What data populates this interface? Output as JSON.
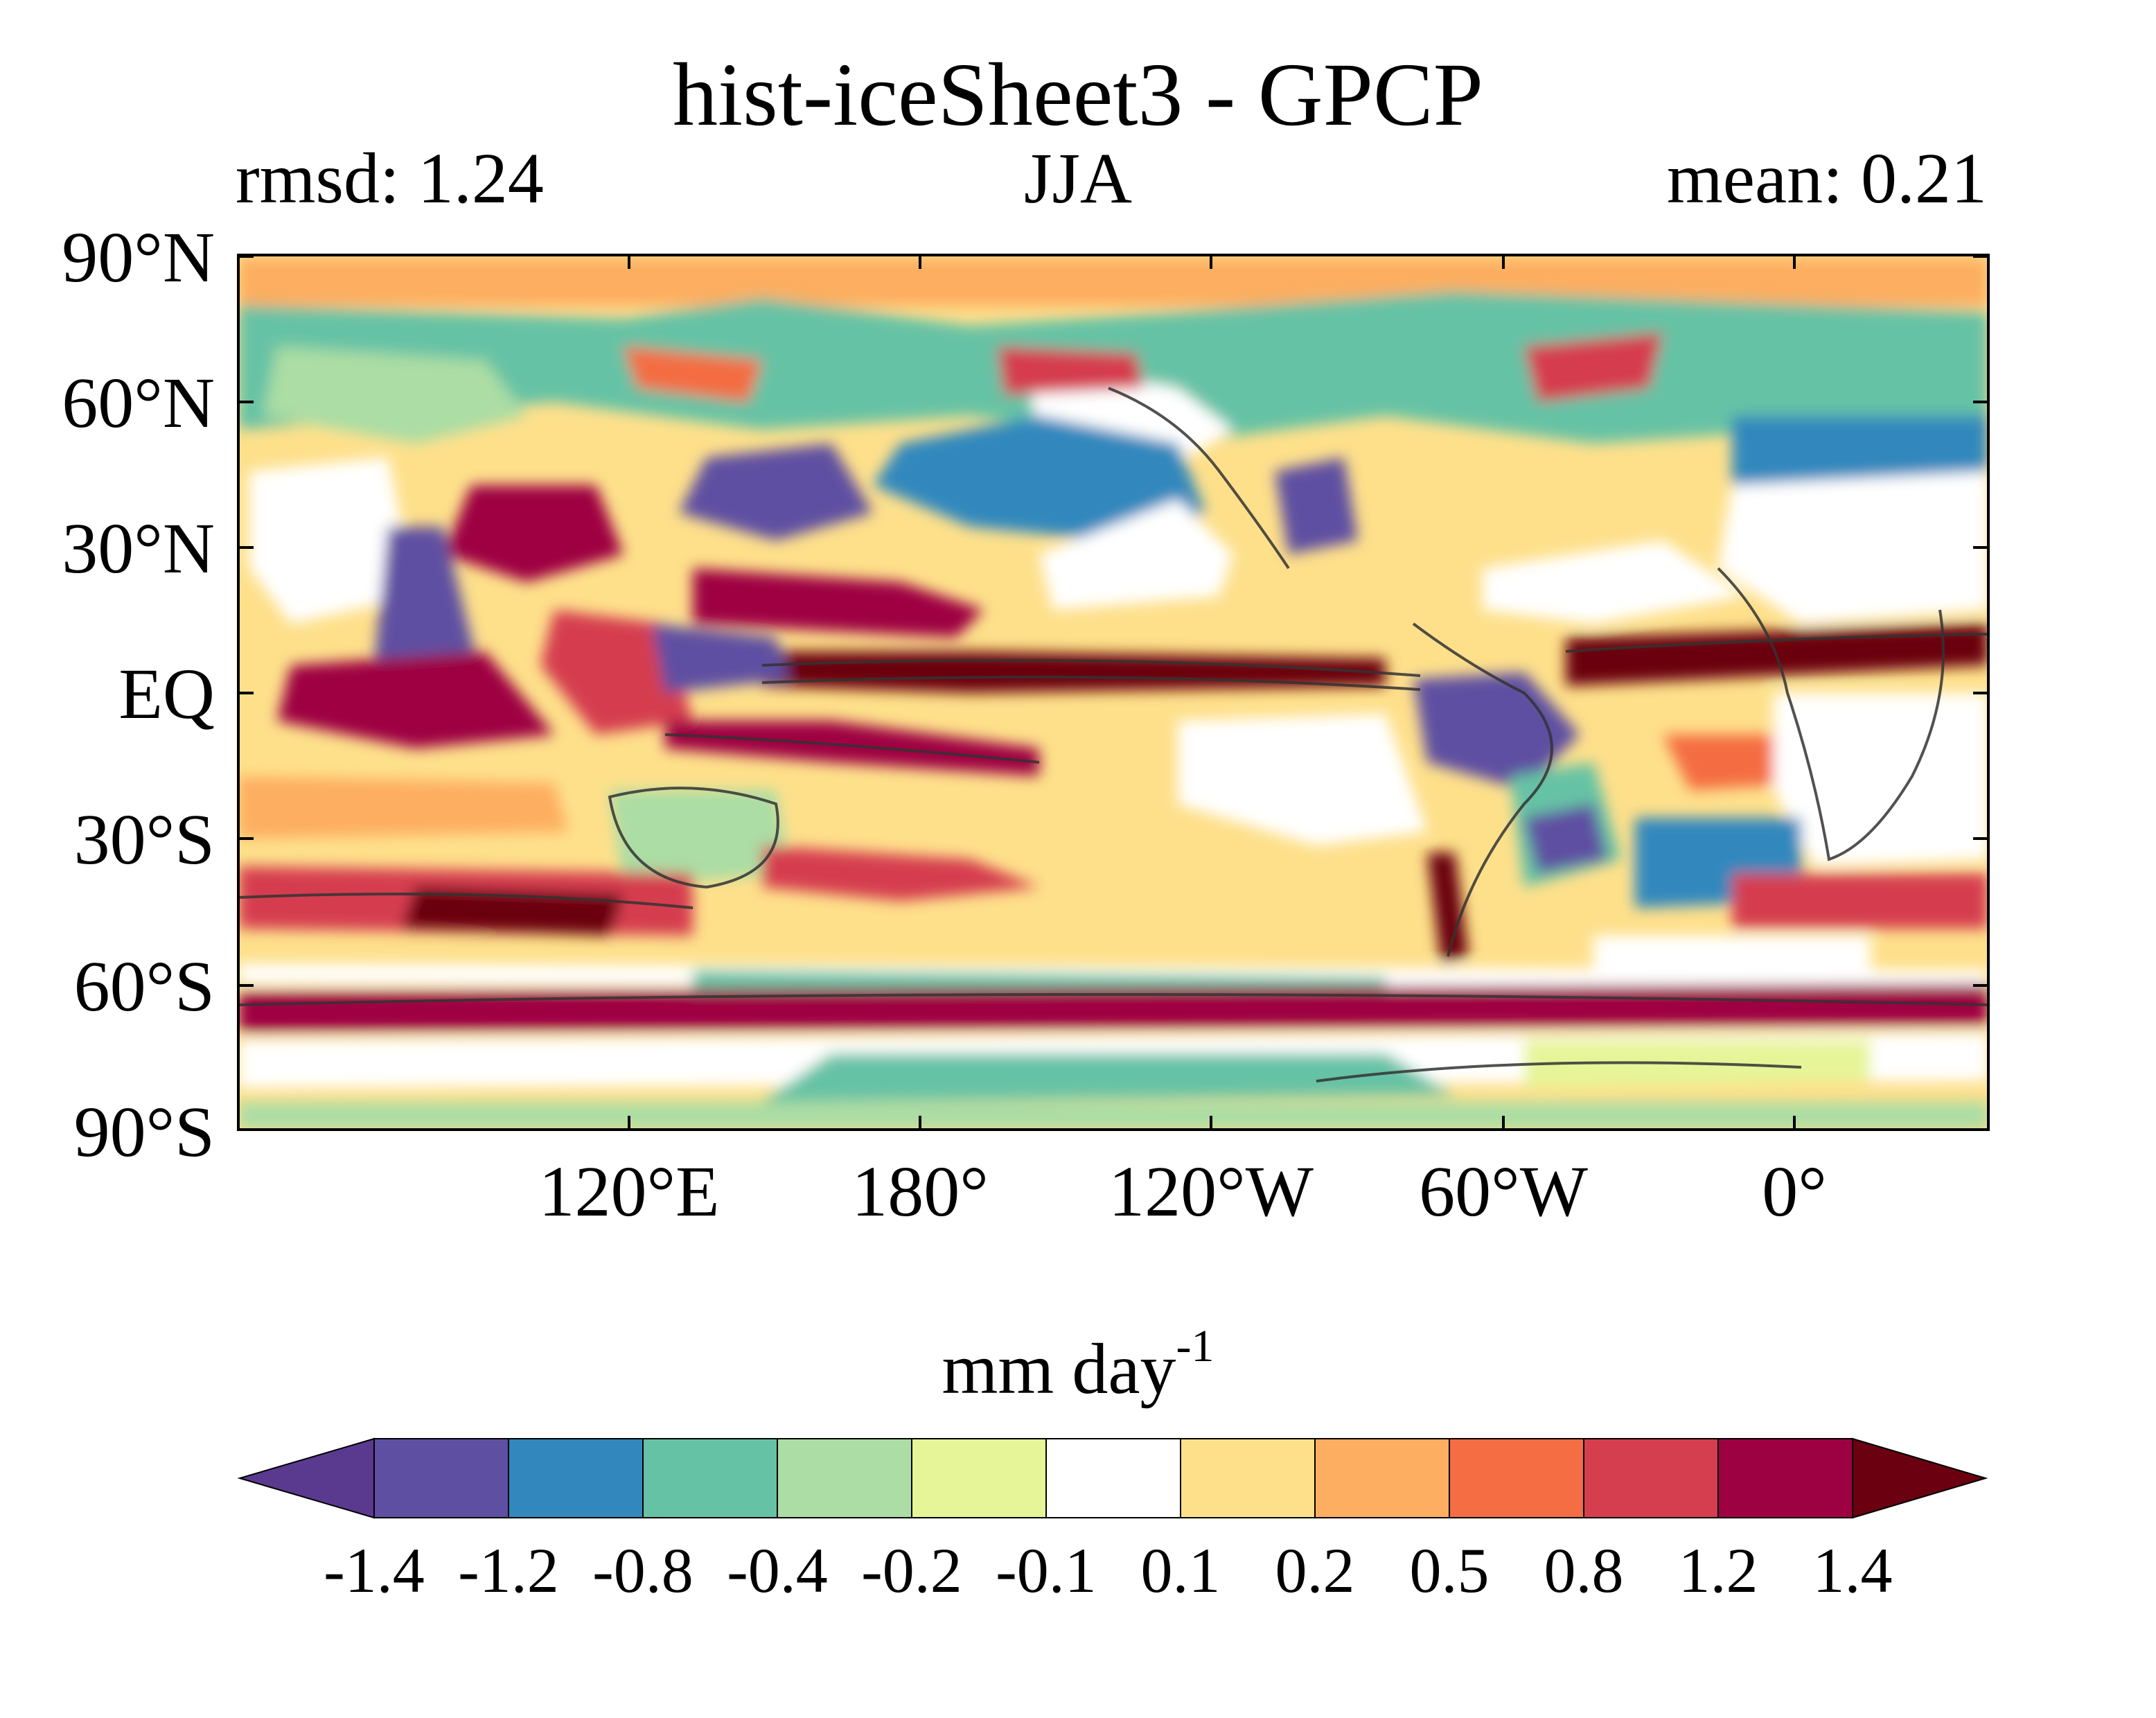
{
  "title": "hist-iceSheet3 - GPCP",
  "left_stat": "rmsd: 1.24",
  "center_label": "JJA",
  "right_stat": "mean: 0.21",
  "unit_base": "mm day",
  "unit_exp": "-1",
  "lat_labels": [
    "90°N",
    "60°N",
    "30°N",
    "EQ",
    "30°S",
    "60°S",
    "90°S"
  ],
  "lon_labels": [
    "120°E",
    "180°",
    "120°W",
    "60°W",
    "0°"
  ],
  "colorbar": {
    "levels": [
      "-1.4",
      "-1.2",
      "-0.8",
      "-0.4",
      "-0.2",
      "-0.1",
      "0.1",
      "0.2",
      "0.5",
      "0.8",
      "1.2",
      "1.4"
    ],
    "under_color": "#5a3a8e",
    "over_color": "#6a0010",
    "colors": [
      "#5e4fa2",
      "#3288bd",
      "#66c2a5",
      "#abdda4",
      "#e6f598",
      "#ffffff",
      "#fee08b",
      "#fdae61",
      "#f46d43",
      "#d53e4f",
      "#9e0142"
    ]
  }
}
